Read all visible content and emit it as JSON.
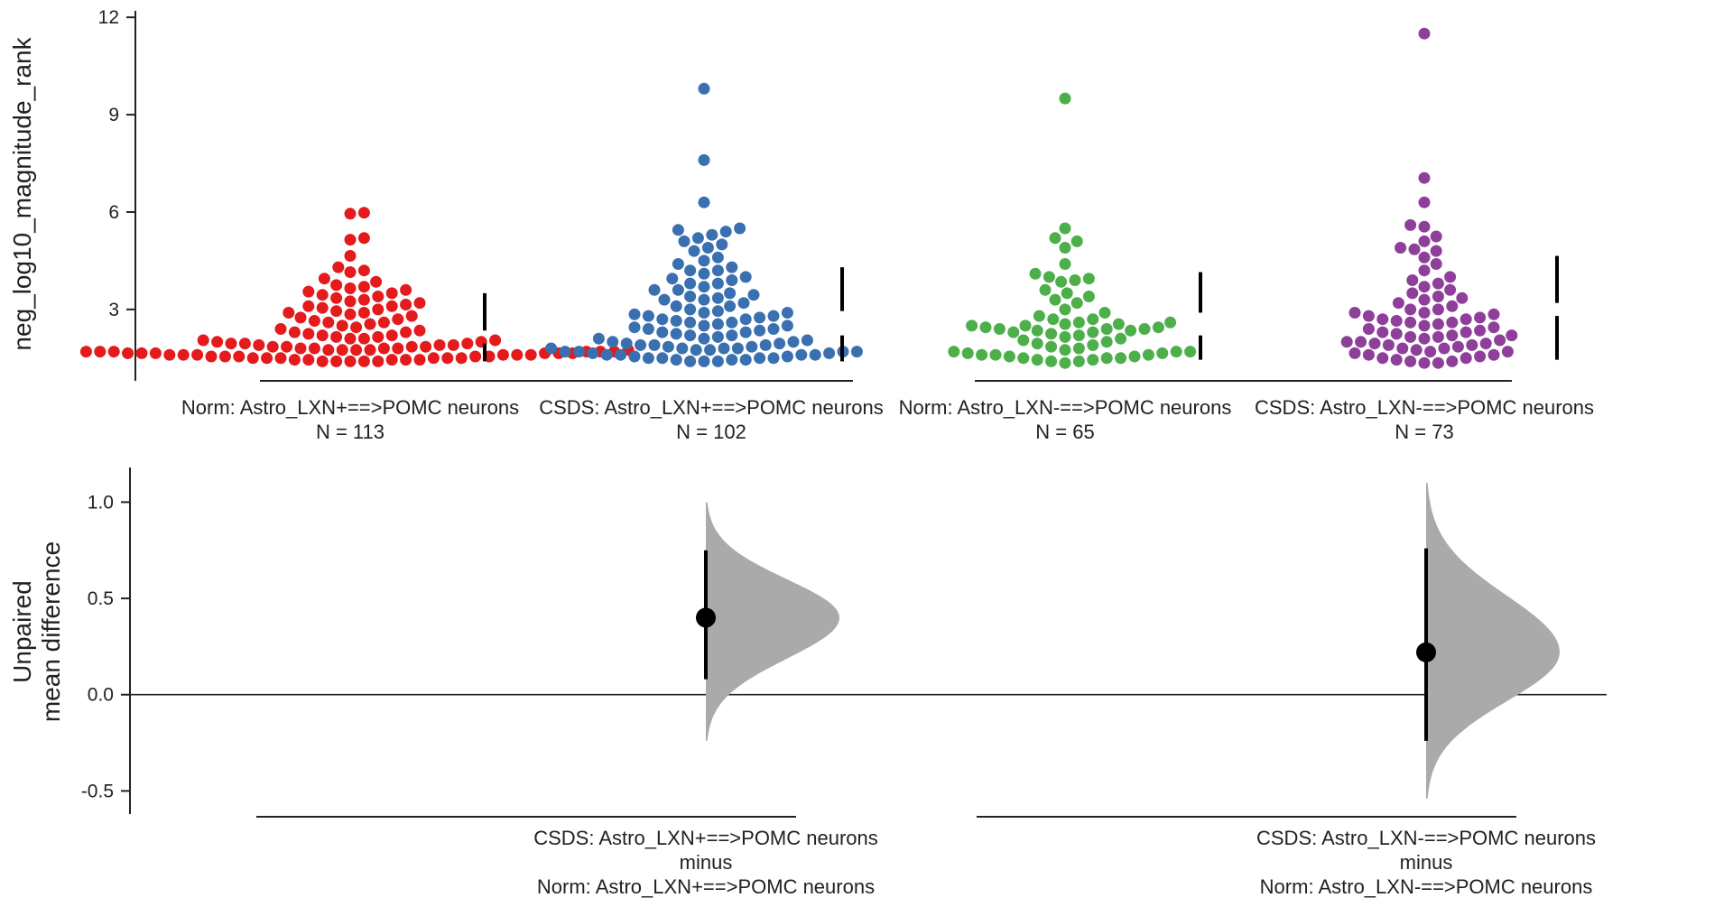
{
  "chart_data": [
    {
      "type": "scatter",
      "subtype": "swarm",
      "ylabel": "neg_log10_magnitude_rank",
      "ylim": [
        0.8,
        12.2
      ],
      "yticks": [
        "3",
        "6",
        "9",
        "12"
      ],
      "groups": [
        {
          "label": "Norm: Astro_LXN+==>POMC neurons",
          "n_label": "N = 113",
          "color": "#e41a1c",
          "summary": {
            "gap_low": 1.95,
            "gap_high": 2.35,
            "low": 1.4,
            "high": 3.5
          },
          "values": [
            5.95,
            5.98,
            5.2,
            5.15,
            4.65,
            4.3,
            4.2,
            4.15,
            3.95,
            3.85,
            3.75,
            3.7,
            3.65,
            3.6,
            3.55,
            3.5,
            3.45,
            3.4,
            3.35,
            3.3,
            3.25,
            3.2,
            3.15,
            3.1,
            3.05,
            3.0,
            2.95,
            2.9,
            2.85,
            2.8,
            2.75,
            2.7,
            2.65,
            2.6,
            2.55,
            2.5,
            2.45,
            2.4,
            2.35,
            2.3,
            2.25,
            2.2,
            2.15,
            2.1,
            2.05,
            2.0,
            2.0,
            1.95,
            1.95,
            1.9,
            1.9,
            1.9,
            1.85,
            1.85,
            1.85,
            1.8,
            1.8,
            1.8,
            1.8,
            1.75,
            1.75,
            1.75,
            1.75,
            1.7,
            1.7,
            1.7,
            1.7,
            1.7,
            1.65,
            1.65,
            1.65,
            1.65,
            1.65,
            1.6,
            1.6,
            1.6,
            1.6,
            1.6,
            1.6,
            1.55,
            1.55,
            1.55,
            1.55,
            1.55,
            1.5,
            1.5,
            1.5,
            1.5,
            1.5,
            1.5,
            1.45,
            1.45,
            1.45,
            1.45,
            1.45,
            1.4,
            1.4,
            1.4,
            1.4,
            1.4,
            2.1,
            2.2,
            2.6,
            2.9,
            3.1,
            1.75,
            1.85,
            1.95,
            2.05,
            2.15,
            2.3,
            1.65,
            1.7
          ]
        },
        {
          "label": "CSDS: Astro_LXN+==>POMC neurons",
          "n_label": "N = 102",
          "color": "#3a6fb0",
          "summary": {
            "gap_low": 2.2,
            "gap_high": 2.95,
            "low": 1.4,
            "high": 4.3
          },
          "values": [
            9.8,
            7.6,
            6.3,
            5.5,
            5.45,
            5.4,
            5.3,
            5.2,
            5.1,
            5.0,
            4.9,
            4.8,
            4.6,
            4.5,
            4.4,
            4.3,
            4.2,
            4.1,
            4.0,
            3.95,
            3.9,
            3.8,
            3.7,
            3.6,
            3.5,
            3.45,
            3.4,
            3.35,
            3.3,
            3.2,
            3.1,
            3.0,
            2.95,
            2.9,
            2.85,
            2.8,
            2.75,
            2.7,
            2.65,
            2.6,
            2.55,
            2.5,
            2.45,
            2.4,
            2.35,
            2.3,
            2.25,
            2.2,
            2.15,
            2.1,
            2.05,
            2.0,
            1.95,
            1.9,
            1.9,
            1.85,
            1.85,
            1.8,
            1.8,
            1.8,
            1.75,
            1.75,
            1.7,
            1.7,
            1.7,
            1.65,
            1.65,
            1.6,
            1.6,
            1.6,
            1.55,
            1.55,
            1.5,
            1.5,
            1.5,
            1.45,
            1.45,
            1.45,
            1.4,
            1.4,
            1.4,
            2.8,
            2.6,
            2.4,
            2.2,
            2.0,
            1.9,
            3.1,
            3.3,
            2.7,
            2.5,
            2.3,
            2.1,
            1.8,
            1.7,
            1.6,
            1.5,
            4.2,
            3.8,
            3.6,
            2.9,
            1.95
          ]
        },
        {
          "label": "Norm: Astro_LXN-==>POMC neurons",
          "n_label": "N = 65",
          "color": "#4daf4a",
          "summary": {
            "gap_low": 2.2,
            "gap_high": 2.9,
            "low": 1.45,
            "high": 4.15
          },
          "values": [
            9.5,
            5.5,
            5.2,
            5.1,
            4.9,
            4.4,
            4.1,
            4.0,
            3.95,
            3.9,
            3.85,
            3.6,
            3.5,
            3.4,
            3.3,
            3.2,
            3.0,
            2.9,
            2.8,
            2.7,
            2.6,
            2.55,
            2.5,
            2.45,
            2.4,
            2.4,
            2.35,
            2.35,
            2.3,
            2.3,
            2.25,
            2.2,
            2.15,
            2.1,
            2.05,
            2.0,
            1.95,
            1.9,
            1.85,
            1.8,
            1.75,
            1.7,
            1.7,
            1.65,
            1.65,
            1.6,
            1.6,
            1.55,
            1.55,
            1.5,
            1.5,
            1.45,
            1.45,
            1.4,
            1.4,
            1.35,
            2.5,
            2.6,
            2.7,
            2.45,
            2.55,
            2.4,
            1.6,
            1.7,
            1.5
          ]
        },
        {
          "label": "CSDS: Astro_LXN-==>POMC neurons",
          "n_label": "N = 73",
          "color": "#8e3f9a",
          "summary": {
            "gap_low": 2.8,
            "gap_high": 3.2,
            "low": 1.45,
            "high": 4.65
          },
          "values": [
            11.5,
            7.05,
            6.3,
            5.6,
            5.55,
            5.25,
            5.1,
            4.9,
            4.85,
            4.8,
            4.6,
            4.4,
            4.2,
            4.0,
            3.9,
            3.8,
            3.6,
            3.5,
            3.4,
            3.3,
            3.2,
            3.1,
            3.0,
            2.9,
            2.85,
            2.8,
            2.75,
            2.7,
            2.65,
            2.6,
            2.5,
            2.4,
            2.35,
            2.3,
            2.25,
            2.2,
            2.15,
            2.1,
            2.05,
            2.0,
            1.95,
            1.9,
            1.85,
            1.8,
            1.75,
            1.7,
            1.65,
            1.6,
            1.55,
            1.5,
            1.45,
            1.4,
            1.4,
            1.35,
            1.35,
            3.7,
            3.0,
            2.7,
            2.3,
            2.0,
            1.8,
            1.6,
            2.45,
            2.15,
            1.95,
            3.35,
            2.9,
            2.55,
            2.2,
            1.9,
            1.7,
            1.5,
            2.6
          ]
        }
      ]
    },
    {
      "type": "scatter",
      "subtype": "estimation",
      "ylabel": [
        "Unpaired",
        "mean difference"
      ],
      "ylim": [
        -0.62,
        1.18
      ],
      "yticks": [
        "-0.5",
        "0.0",
        "0.5",
        "1.0"
      ],
      "zero_line": true,
      "comparisons": [
        {
          "label": [
            "CSDS: Astro_LXN+==>POMC neurons",
            "minus",
            "Norm: Astro_LXN+==>POMC neurons"
          ],
          "mean_diff": 0.4,
          "ci": [
            0.08,
            0.75
          ],
          "dist_range": [
            -0.24,
            1.0
          ],
          "dist_mode": 0.4,
          "color": "#aaaaaa"
        },
        {
          "label": [
            "CSDS: Astro_LXN-==>POMC neurons",
            "minus",
            "Norm: Astro_LXN-==>POMC neurons"
          ],
          "mean_diff": 0.22,
          "ci": [
            -0.24,
            0.76
          ],
          "dist_range": [
            -0.54,
            1.1
          ],
          "dist_mode": 0.22,
          "color": "#aaaaaa"
        }
      ]
    }
  ]
}
